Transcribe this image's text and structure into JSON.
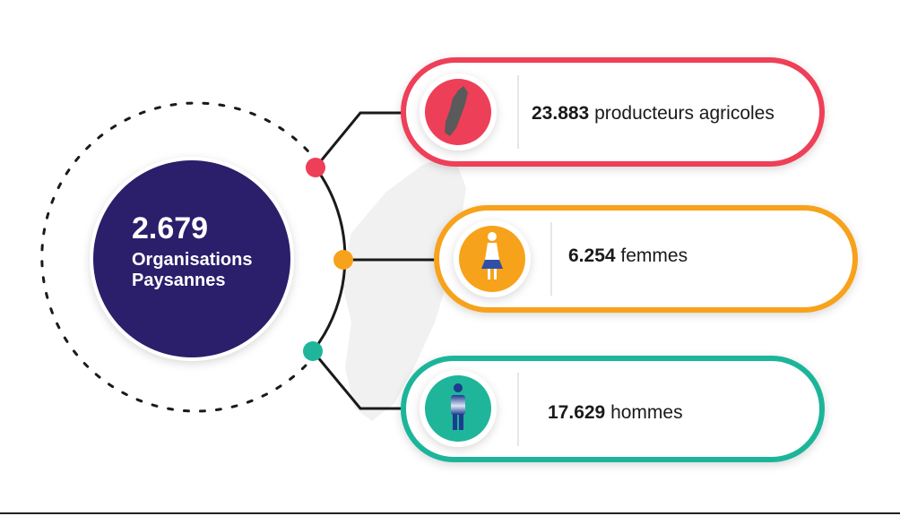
{
  "hub": {
    "number": "2.679",
    "line1": "Organisations",
    "line2": "Paysannes",
    "color": "#2b1e6b"
  },
  "items": [
    {
      "value": "23.883",
      "label": "producteurs agricoles",
      "color": "#ee3f58",
      "icon": "madagascar-map-icon"
    },
    {
      "value": "6.254",
      "label": "femmes",
      "color": "#f7a21b",
      "icon": "woman-icon"
    },
    {
      "value": "17.629",
      "label": "hommes",
      "color": "#1fb59a",
      "icon": "man-icon"
    }
  ]
}
